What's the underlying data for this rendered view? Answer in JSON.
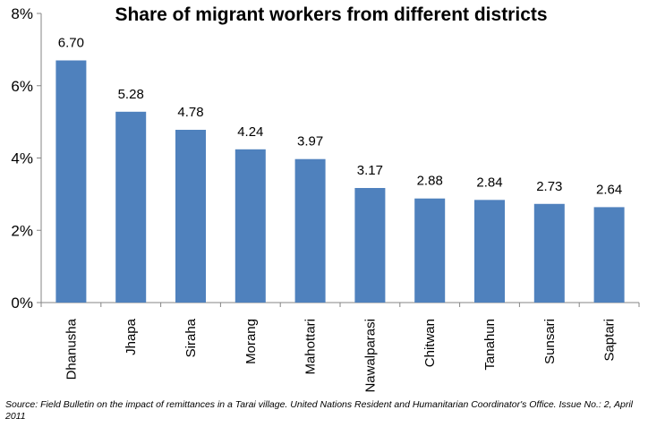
{
  "chart_data": {
    "type": "bar",
    "title": "Share of migrant workers from different districts",
    "categories": [
      "Dhanusha",
      "Jhapa",
      "Siraha",
      "Morang",
      "Mahottari",
      "Nawalparasi",
      "Chitwan",
      "Tanahun",
      "Sunsari",
      "Saptari"
    ],
    "values": [
      6.7,
      5.28,
      4.78,
      4.24,
      3.97,
      3.17,
      2.88,
      2.84,
      2.73,
      2.64
    ],
    "data_labels": [
      "6.70",
      "5.28",
      "4.78",
      "4.24",
      "3.97",
      "3.17",
      "2.88",
      "2.84",
      "2.73",
      "2.64"
    ],
    "y_ticks": [
      0,
      2,
      4,
      6,
      8
    ],
    "y_tick_labels": [
      "0%",
      "2%",
      "4%",
      "6%",
      "8%"
    ],
    "ylim": [
      0,
      8
    ],
    "xlabel": "",
    "ylabel": "",
    "grid": false,
    "bar_color": "#4f81bd",
    "axis_color": "#868686"
  },
  "source_note": "Source: Field Bulletin on the impact of remittances in a Tarai village. United Nations Resident and Humanitarian Coordinator's Office. Issue No.: 2, April 2011"
}
